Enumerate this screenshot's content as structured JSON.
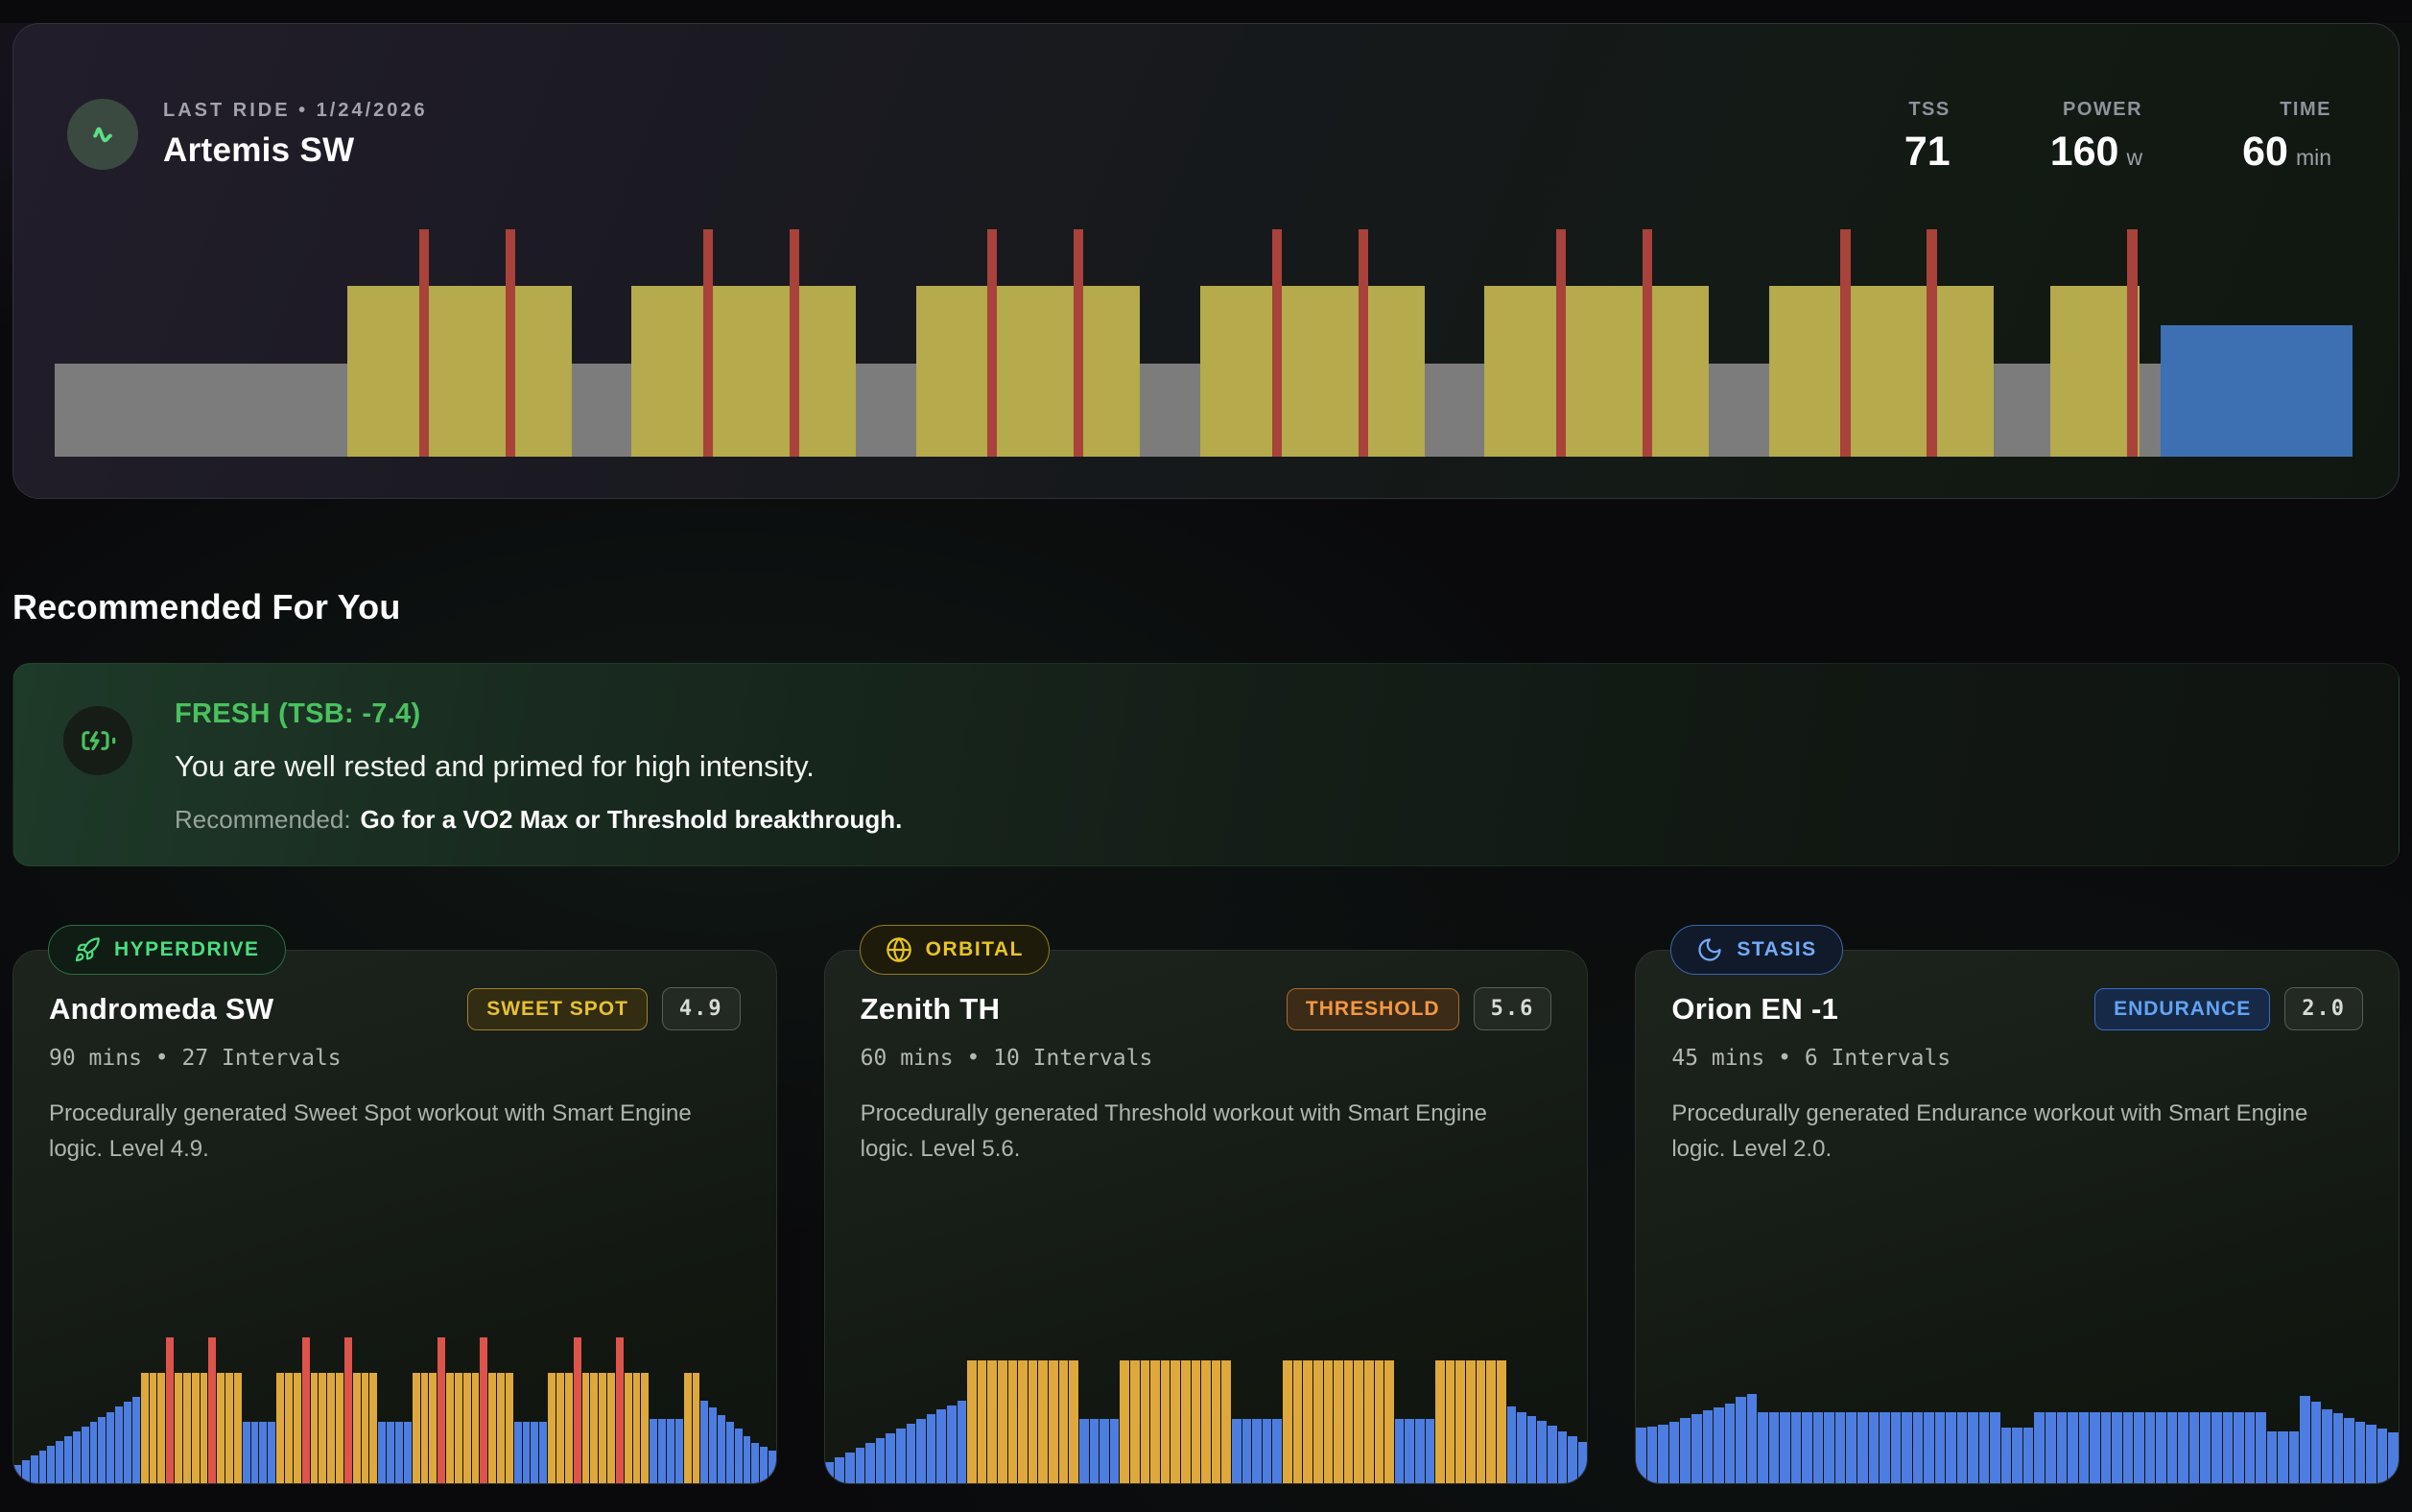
{
  "hero": {
    "eyebrow": "LAST RIDE  •  1/24/2026",
    "title": "Artemis SW",
    "stats": [
      {
        "label": "TSS",
        "value": "71",
        "unit": ""
      },
      {
        "label": "POWER",
        "value": "160",
        "unit": "w"
      },
      {
        "label": "TIME",
        "value": "60",
        "unit": "min"
      }
    ],
    "icon": "activity-icon",
    "accent_color": "#5be087",
    "chart": {
      "colors": {
        "warmup_gray": "#7c7c7c",
        "work_yellow": "#b5aa4c",
        "spike_red": "#a8423a",
        "cooldown_blue": "#3c70b2"
      },
      "segments": [
        {
          "c": "g",
          "w": 12.7,
          "h": 41
        },
        {
          "c": "y",
          "w": 3.12,
          "h": 75
        },
        {
          "c": "r",
          "w": 0.42,
          "h": 100
        },
        {
          "c": "y",
          "w": 3.33,
          "h": 75
        },
        {
          "c": "r",
          "w": 0.42,
          "h": 100
        },
        {
          "c": "y",
          "w": 2.46,
          "h": 75
        },
        {
          "c": "g",
          "w": 2.6,
          "h": 41
        },
        {
          "c": "y",
          "w": 3.12,
          "h": 75
        },
        {
          "c": "r",
          "w": 0.42,
          "h": 100
        },
        {
          "c": "y",
          "w": 3.33,
          "h": 75
        },
        {
          "c": "r",
          "w": 0.42,
          "h": 100
        },
        {
          "c": "y",
          "w": 2.46,
          "h": 75
        },
        {
          "c": "g",
          "w": 2.6,
          "h": 41
        },
        {
          "c": "y",
          "w": 3.12,
          "h": 75
        },
        {
          "c": "r",
          "w": 0.42,
          "h": 100
        },
        {
          "c": "y",
          "w": 3.33,
          "h": 75
        },
        {
          "c": "r",
          "w": 0.42,
          "h": 100
        },
        {
          "c": "y",
          "w": 2.46,
          "h": 75
        },
        {
          "c": "g",
          "w": 2.6,
          "h": 41
        },
        {
          "c": "y",
          "w": 3.12,
          "h": 75
        },
        {
          "c": "r",
          "w": 0.42,
          "h": 100
        },
        {
          "c": "y",
          "w": 3.33,
          "h": 75
        },
        {
          "c": "r",
          "w": 0.42,
          "h": 100
        },
        {
          "c": "y",
          "w": 2.46,
          "h": 75
        },
        {
          "c": "g",
          "w": 2.6,
          "h": 41
        },
        {
          "c": "y",
          "w": 3.12,
          "h": 75
        },
        {
          "c": "r",
          "w": 0.42,
          "h": 100
        },
        {
          "c": "y",
          "w": 3.33,
          "h": 75
        },
        {
          "c": "r",
          "w": 0.42,
          "h": 100
        },
        {
          "c": "y",
          "w": 2.46,
          "h": 75
        },
        {
          "c": "g",
          "w": 2.6,
          "h": 41
        },
        {
          "c": "y",
          "w": 3.12,
          "h": 75
        },
        {
          "c": "r",
          "w": 0.42,
          "h": 100
        },
        {
          "c": "y",
          "w": 3.33,
          "h": 75
        },
        {
          "c": "r",
          "w": 0.42,
          "h": 100
        },
        {
          "c": "y",
          "w": 2.46,
          "h": 75
        },
        {
          "c": "g",
          "w": 2.46,
          "h": 41
        },
        {
          "c": "y",
          "w": 3.33,
          "h": 75
        },
        {
          "c": "r",
          "w": 0.46,
          "h": 100
        },
        {
          "c": "y",
          "w": 0.12,
          "h": 75
        },
        {
          "c": "g",
          "w": 0.92,
          "h": 41
        },
        {
          "c": "b",
          "w": 8.33,
          "h": 58
        }
      ]
    }
  },
  "section": {
    "title": "Recommended For You"
  },
  "advice": {
    "icon": "battery-charging-icon",
    "status": "FRESH (TSB: -7.4)",
    "status_color": "#4ac15e",
    "message": "You are well rested and primed for high intensity.",
    "rec_label": "Recommended:",
    "rec_text": "Go for a VO2 Max or Threshold breakthrough."
  },
  "cards": [
    {
      "tag": "HYPERDRIVE",
      "tag_icon": "rocket-icon",
      "tag_color": "#4ade80",
      "title": "Andromeda SW",
      "zone": "SWEET SPOT",
      "zone_color": "#e6c133",
      "rating": "4.9",
      "meta": "90 mins • 27 Intervals",
      "desc": "Procedurally generated Sweet Spot workout with Smart Engine logic. Level 4.9.",
      "chart": {
        "colors": {
          "base_blue": "#4d7de0",
          "work_yellow": "#dfa83d",
          "spike_red": "#dd544b"
        },
        "bars": [
          {
            "c": "b",
            "n": 15,
            "h0": 12,
            "h1": 56
          },
          {
            "c": "y",
            "n": 3,
            "h": 72
          },
          {
            "c": "r",
            "n": 1,
            "h": 95
          },
          {
            "c": "y",
            "n": 4,
            "h": 72
          },
          {
            "c": "r",
            "n": 1,
            "h": 95
          },
          {
            "c": "y",
            "n": 3,
            "h": 72
          },
          {
            "c": "b",
            "n": 4,
            "h": 40
          },
          {
            "c": "y",
            "n": 3,
            "h": 72
          },
          {
            "c": "r",
            "n": 1,
            "h": 95
          },
          {
            "c": "y",
            "n": 4,
            "h": 72
          },
          {
            "c": "r",
            "n": 1,
            "h": 95
          },
          {
            "c": "y",
            "n": 3,
            "h": 72
          },
          {
            "c": "b",
            "n": 4,
            "h": 40
          },
          {
            "c": "y",
            "n": 3,
            "h": 72
          },
          {
            "c": "r",
            "n": 1,
            "h": 95
          },
          {
            "c": "y",
            "n": 4,
            "h": 72
          },
          {
            "c": "r",
            "n": 1,
            "h": 95
          },
          {
            "c": "y",
            "n": 3,
            "h": 72
          },
          {
            "c": "b",
            "n": 4,
            "h": 40
          },
          {
            "c": "y",
            "n": 3,
            "h": 72
          },
          {
            "c": "r",
            "n": 1,
            "h": 95
          },
          {
            "c": "y",
            "n": 4,
            "h": 72
          },
          {
            "c": "r",
            "n": 1,
            "h": 95
          },
          {
            "c": "y",
            "n": 3,
            "h": 72
          },
          {
            "c": "b",
            "n": 4,
            "h": 42
          },
          {
            "c": "y",
            "n": 2,
            "h": 72
          },
          {
            "c": "b",
            "n": 7,
            "h0": 54,
            "h1": 26
          },
          {
            "c": "b",
            "n": 2,
            "h0": 24,
            "h1": 21
          }
        ]
      }
    },
    {
      "tag": "ORBITAL",
      "tag_icon": "globe-icon",
      "tag_color": "#e7c520",
      "title": "Zenith TH",
      "zone": "THRESHOLD",
      "zone_color": "#f49940",
      "rating": "5.6",
      "meta": "60 mins • 10 Intervals",
      "desc": "Procedurally generated Threshold workout with Smart Engine logic. Level 5.6.",
      "chart": {
        "colors": {
          "base_blue": "#4d7de0",
          "work_yellow": "#dfa83d"
        },
        "bars": [
          {
            "c": "b",
            "n": 14,
            "h0": 14,
            "h1": 54
          },
          {
            "c": "y",
            "n": 11,
            "h": 80
          },
          {
            "c": "b",
            "n": 4,
            "h": 42
          },
          {
            "c": "y",
            "n": 11,
            "h": 80
          },
          {
            "c": "b",
            "n": 5,
            "h": 42
          },
          {
            "c": "y",
            "n": 11,
            "h": 80
          },
          {
            "c": "b",
            "n": 4,
            "h": 42
          },
          {
            "c": "y",
            "n": 7,
            "h": 80
          },
          {
            "c": "b",
            "n": 2,
            "h0": 50,
            "h1": 46
          },
          {
            "c": "b",
            "n": 6,
            "h0": 44,
            "h1": 27
          }
        ]
      }
    },
    {
      "tag": "STASIS",
      "tag_icon": "moon-icon",
      "tag_color": "#74aaf7",
      "title": "Orion EN -1",
      "zone": "ENDURANCE",
      "zone_color": "#63a3f5",
      "rating": "2.0",
      "meta": "45 mins • 6 Intervals",
      "desc": "Procedurally generated Endurance workout with Smart Engine logic. Level 2.0.",
      "chart": {
        "colors": {
          "base_blue": "#4d7de0"
        },
        "bars": [
          {
            "c": "b",
            "n": 3,
            "h0": 36,
            "h1": 38
          },
          {
            "c": "b",
            "n": 6,
            "h0": 40,
            "h1": 52
          },
          {
            "c": "b",
            "n": 2,
            "h0": 56,
            "h1": 58
          },
          {
            "c": "b",
            "n": 22,
            "h": 46
          },
          {
            "c": "b",
            "n": 3,
            "h": 36
          },
          {
            "c": "b",
            "n": 21,
            "h": 46
          },
          {
            "c": "b",
            "n": 3,
            "h": 34
          },
          {
            "c": "b",
            "n": 2,
            "h0": 57,
            "h1": 53
          },
          {
            "c": "b",
            "n": 4,
            "h0": 48,
            "h1": 40
          },
          {
            "c": "b",
            "n": 3,
            "h0": 38,
            "h1": 33
          }
        ]
      }
    }
  ]
}
